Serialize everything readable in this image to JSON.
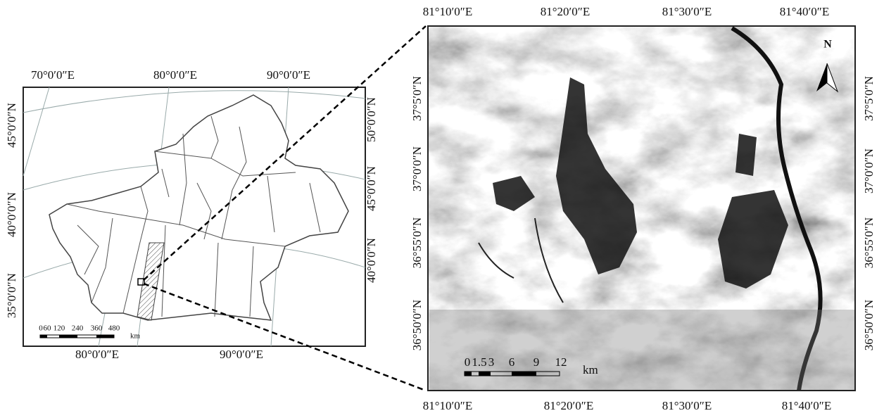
{
  "left_map": {
    "top_labels": [
      "70°0′0″E",
      "80°0′0″E",
      "90°0′0″E"
    ],
    "bottom_labels": [
      "80°0′0″E",
      "90°0′0″E"
    ],
    "left_labels": [
      "45°0′0″N",
      "40°0′0″N",
      "35°0′0″N"
    ],
    "right_labels": [
      "50°0′0″N",
      "45°0′0″N",
      "40°0′0″N"
    ],
    "scale_labels": [
      "0",
      "60",
      "120",
      "240",
      "360",
      "480"
    ],
    "scale_unit": "km"
  },
  "right_map": {
    "top_labels": [
      "81°10′0″E",
      "81°20′0″E",
      "81°30′0″E",
      "81°40′0″E"
    ],
    "bottom_labels": [
      "81°10′0″E",
      "81°20′0″E",
      "81°30′0″E",
      "81°40′0″E"
    ],
    "left_labels": [
      "37°5′0″N",
      "37°0′0″N",
      "36°55′0″N",
      "36°50′0″N"
    ],
    "right_labels": [
      "37°5′0″N",
      "37°0′0″N",
      "36°55′0″N",
      "36°50′0″N"
    ],
    "scale_labels": [
      "0",
      "1.5",
      "3",
      "6",
      "9",
      "12"
    ],
    "scale_unit": "km",
    "north": "N"
  }
}
